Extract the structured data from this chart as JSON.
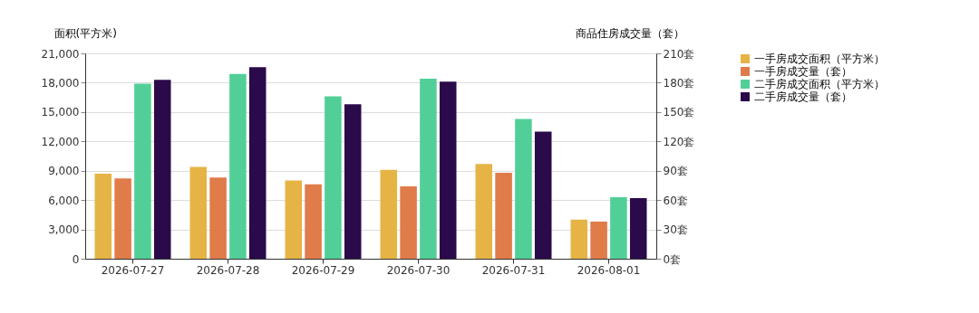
{
  "chart_data": {
    "type": "bar",
    "ylabel": "面积(平方米)",
    "y2label": "商品住房成交量（套）",
    "categories": [
      "2026-07-27",
      "2026-07-28",
      "2026-07-29",
      "2026-07-30",
      "2026-07-31",
      "2026-08-01"
    ],
    "series": [
      {
        "name": "一手房成交面积（平方米）",
        "color": "#e6b445",
        "values": [
          8700,
          9400,
          8000,
          9100,
          9700,
          4000
        ]
      },
      {
        "name": "一手房成交量（套）",
        "color": "#e07b4a",
        "values": [
          82,
          83,
          76,
          74,
          88,
          38
        ],
        "axis": "y2"
      },
      {
        "name": "二手房成交面积（平方米）",
        "color": "#52cf98",
        "values": [
          17900,
          18900,
          16600,
          18400,
          14300,
          6300
        ]
      },
      {
        "name": "二手房成交量（套）",
        "color": "#2a0a4a",
        "values": [
          183,
          196,
          158,
          181,
          130,
          62
        ],
        "axis": "y2"
      }
    ],
    "ylim": [
      0,
      21000
    ],
    "yticks": [
      0,
      {
        "value": 3000,
        "label": "3,000"
      },
      {
        "value": 6000,
        "label": "6,000"
      },
      {
        "value": 9000,
        "label": "9,000"
      },
      {
        "value": 12000,
        "label": "12,000"
      },
      {
        "value": 15000,
        "label": "15,000"
      },
      {
        "value": 18000,
        "label": "18,000"
      },
      {
        "value": 21000,
        "label": "21,000"
      }
    ],
    "y2lim": [
      0,
      210
    ],
    "y2ticks": [
      {
        "value": 0,
        "label": "0套"
      },
      {
        "value": 30,
        "label": "30套"
      },
      {
        "value": 60,
        "label": "60套"
      },
      {
        "value": 90,
        "label": "90套"
      },
      {
        "value": 120,
        "label": "120套"
      },
      {
        "value": 150,
        "label": "150套"
      },
      {
        "value": 180,
        "label": "180套"
      },
      {
        "value": 210,
        "label": "210套"
      }
    ],
    "grid": "y",
    "legend": "right"
  }
}
